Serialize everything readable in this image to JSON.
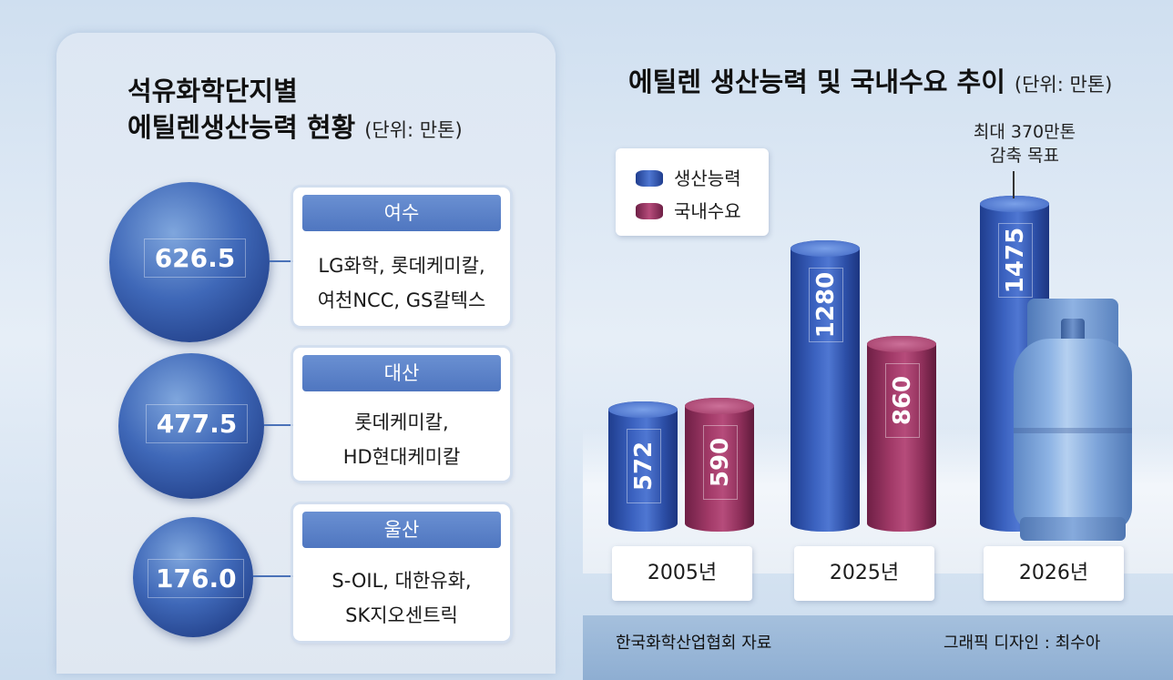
{
  "left": {
    "title_line1": "석유화학단지별",
    "title_line2": "에틸렌생산능력 현황",
    "unit": "(단위: 만톤)",
    "sites": [
      {
        "name": "여수",
        "value": "626.5",
        "companies": [
          "LG화학, 롯데케미칼,",
          "여천NCC, GS칼텍스"
        ]
      },
      {
        "name": "대산",
        "value": "477.5",
        "companies": [
          "롯데케미칼,",
          "HD현대케미칼"
        ]
      },
      {
        "name": "울산",
        "value": "176.0",
        "companies": [
          "S-OIL, 대한유화,",
          "SK지오센트릭"
        ]
      }
    ]
  },
  "chart_data": {
    "type": "bar",
    "title": "에틸렌 생산능력 및 국내수요 추이",
    "unit": "(단위: 만톤)",
    "categories": [
      "2005년",
      "2025년",
      "2026년"
    ],
    "series": [
      {
        "name": "생산능력",
        "values": [
          572,
          1280,
          1475
        ],
        "color": "#3b62c0"
      },
      {
        "name": "국내수요",
        "values": [
          590,
          860,
          null
        ],
        "color": "#a23a68"
      }
    ],
    "ylim": [
      0,
      1600
    ],
    "annotation": [
      "최대 370만톤",
      "감축 목표"
    ]
  },
  "footer": {
    "source": "한국화학산업협회 자료",
    "credit": "그래픽 디자인 : 최수아"
  }
}
